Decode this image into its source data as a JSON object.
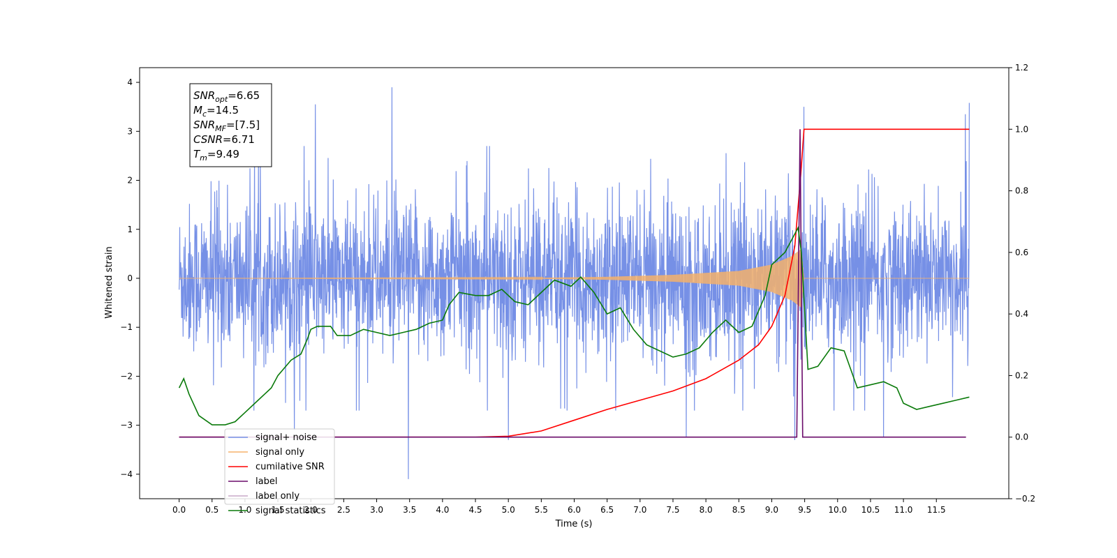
{
  "chart_data": {
    "type": "line",
    "xlabel": "Time (s)",
    "ylabel": "Whitened strain",
    "xlim": [
      -0.6,
      12.6
    ],
    "ylim": [
      -4.5,
      4.3
    ],
    "y2lim": [
      -0.2,
      1.2
    ],
    "x_ticks": [
      "0.0",
      "0.5",
      "1.0",
      "1.5",
      "2.0",
      "2.5",
      "3.0",
      "3.5",
      "4.0",
      "4.5",
      "5.0",
      "5.5",
      "6.0",
      "6.5",
      "7.0",
      "7.5",
      "8.0",
      "8.5",
      "9.0",
      "9.5",
      "10.0",
      "10.5",
      "11.0",
      "11.5"
    ],
    "x_tick_values": [
      0,
      0.5,
      1,
      1.5,
      2,
      2.5,
      3,
      3.5,
      4,
      4.5,
      5,
      5.5,
      6,
      6.5,
      7,
      7.5,
      8,
      8.5,
      9,
      9.5,
      10,
      10.5,
      11,
      11.5
    ],
    "y_ticks": [
      "−4",
      "−3",
      "−2",
      "−1",
      "0",
      "1",
      "2",
      "3",
      "4"
    ],
    "y_tick_values": [
      -4,
      -3,
      -2,
      -1,
      0,
      1,
      2,
      3,
      4
    ],
    "y2_ticks": [
      "−0.2",
      "0.0",
      "0.2",
      "0.4",
      "0.6",
      "0.8",
      "1.0",
      "1.2"
    ],
    "y2_tick_values": [
      -0.2,
      0,
      0.2,
      0.4,
      0.6,
      0.8,
      1.0,
      1.2
    ],
    "grid": false,
    "legend_position": "lower-left",
    "annotation_box": {
      "lines": [
        {
          "sym": "SNR",
          "sub": "opt",
          "value": "=6.65"
        },
        {
          "sym": "M",
          "sub": "c",
          "value": "=14.5"
        },
        {
          "sym": "SNR",
          "sub": "MF",
          "value": "=[7.5]"
        },
        {
          "sym": "CSNR",
          "sub": "",
          "value": "=6.71"
        },
        {
          "sym": "T",
          "sub": "m",
          "value": "=9.49"
        }
      ]
    },
    "series": [
      {
        "name": "signal+ noise",
        "color": "#7690e6",
        "axis": "left",
        "kind": "noise",
        "t_range": [
          0,
          12.0
        ],
        "typical_range": [
          -1.6,
          1.5
        ],
        "peaks": [
          {
            "x": 3.23,
            "y": 3.9
          },
          {
            "x": 2.07,
            "y": 3.55
          },
          {
            "x": 12.0,
            "y": 3.58
          },
          {
            "x": 11.94,
            "y": 3.35
          },
          {
            "x": 9.49,
            "y": 3.5
          },
          {
            "x": 3.48,
            "y": -4.1
          },
          {
            "x": 5.0,
            "y": -3.3
          },
          {
            "x": 10.7,
            "y": -3.25
          },
          {
            "x": 1.75,
            "y": -3.1
          },
          {
            "x": 7.7,
            "y": -3.25
          },
          {
            "x": 9.35,
            "y": -3.3
          }
        ]
      },
      {
        "name": "signal only",
        "color": "#f5b26b",
        "axis": "left",
        "kind": "chirp",
        "t_range": [
          0,
          12.0
        ],
        "merger_time": 9.49,
        "envelope": [
          [
            0,
            0.0
          ],
          [
            5.5,
            0.01
          ],
          [
            6.5,
            0.03
          ],
          [
            7.5,
            0.07
          ],
          [
            8.5,
            0.15
          ],
          [
            9.0,
            0.28
          ],
          [
            9.3,
            0.45
          ],
          [
            9.45,
            0.6
          ],
          [
            9.49,
            0.0
          ]
        ]
      },
      {
        "name": "cumilative SNR",
        "color": "#ff0000",
        "axis": "right",
        "points": [
          [
            0,
            0.0
          ],
          [
            4.5,
            0.0
          ],
          [
            5.0,
            0.003
          ],
          [
            5.5,
            0.02
          ],
          [
            6.0,
            0.055
          ],
          [
            6.5,
            0.09
          ],
          [
            7.0,
            0.12
          ],
          [
            7.5,
            0.15
          ],
          [
            8.0,
            0.19
          ],
          [
            8.5,
            0.25
          ],
          [
            8.8,
            0.3
          ],
          [
            9.0,
            0.36
          ],
          [
            9.2,
            0.46
          ],
          [
            9.35,
            0.62
          ],
          [
            9.44,
            0.85
          ],
          [
            9.49,
            1.0
          ],
          [
            12.0,
            1.0
          ]
        ]
      },
      {
        "name": "label",
        "color": "#6a0a6a",
        "axis": "right",
        "points": [
          [
            0,
            0.0
          ],
          [
            9.38,
            0.0
          ],
          [
            9.43,
            1.0
          ],
          [
            9.47,
            0.0
          ],
          [
            11.95,
            0.0
          ]
        ]
      },
      {
        "name": "label only",
        "color": "#c9a8c9",
        "axis": "right",
        "points": []
      },
      {
        "name": "signal statistics",
        "color": "#0a7a0a",
        "axis": "right",
        "points": [
          [
            0.0,
            0.16
          ],
          [
            0.07,
            0.19
          ],
          [
            0.15,
            0.14
          ],
          [
            0.3,
            0.07
          ],
          [
            0.5,
            0.04
          ],
          [
            0.7,
            0.04
          ],
          [
            0.85,
            0.05
          ],
          [
            1.0,
            0.08
          ],
          [
            1.2,
            0.12
          ],
          [
            1.4,
            0.16
          ],
          [
            1.5,
            0.2
          ],
          [
            1.7,
            0.25
          ],
          [
            1.85,
            0.27
          ],
          [
            1.95,
            0.32
          ],
          [
            2.0,
            0.35
          ],
          [
            2.1,
            0.36
          ],
          [
            2.3,
            0.36
          ],
          [
            2.4,
            0.33
          ],
          [
            2.6,
            0.33
          ],
          [
            2.8,
            0.35
          ],
          [
            3.0,
            0.34
          ],
          [
            3.2,
            0.33
          ],
          [
            3.4,
            0.34
          ],
          [
            3.6,
            0.35
          ],
          [
            3.8,
            0.37
          ],
          [
            4.0,
            0.38
          ],
          [
            4.1,
            0.43
          ],
          [
            4.25,
            0.47
          ],
          [
            4.5,
            0.46
          ],
          [
            4.7,
            0.46
          ],
          [
            4.9,
            0.48
          ],
          [
            5.1,
            0.44
          ],
          [
            5.3,
            0.43
          ],
          [
            5.5,
            0.47
          ],
          [
            5.7,
            0.51
          ],
          [
            5.95,
            0.49
          ],
          [
            6.1,
            0.52
          ],
          [
            6.3,
            0.47
          ],
          [
            6.5,
            0.4
          ],
          [
            6.7,
            0.42
          ],
          [
            6.9,
            0.35
          ],
          [
            7.1,
            0.3
          ],
          [
            7.3,
            0.28
          ],
          [
            7.5,
            0.26
          ],
          [
            7.7,
            0.27
          ],
          [
            7.9,
            0.29
          ],
          [
            8.1,
            0.34
          ],
          [
            8.3,
            0.38
          ],
          [
            8.5,
            0.34
          ],
          [
            8.7,
            0.36
          ],
          [
            8.9,
            0.46
          ],
          [
            9.0,
            0.56
          ],
          [
            9.1,
            0.58
          ],
          [
            9.2,
            0.6
          ],
          [
            9.3,
            0.64
          ],
          [
            9.4,
            0.68
          ],
          [
            9.45,
            0.6
          ],
          [
            9.55,
            0.22
          ],
          [
            9.7,
            0.23
          ],
          [
            9.9,
            0.29
          ],
          [
            10.1,
            0.28
          ],
          [
            10.3,
            0.16
          ],
          [
            10.5,
            0.17
          ],
          [
            10.7,
            0.18
          ],
          [
            10.9,
            0.16
          ],
          [
            11.0,
            0.11
          ],
          [
            11.2,
            0.09
          ],
          [
            11.4,
            0.1
          ],
          [
            11.6,
            0.11
          ],
          [
            11.8,
            0.12
          ],
          [
            12.0,
            0.13
          ]
        ]
      }
    ]
  }
}
